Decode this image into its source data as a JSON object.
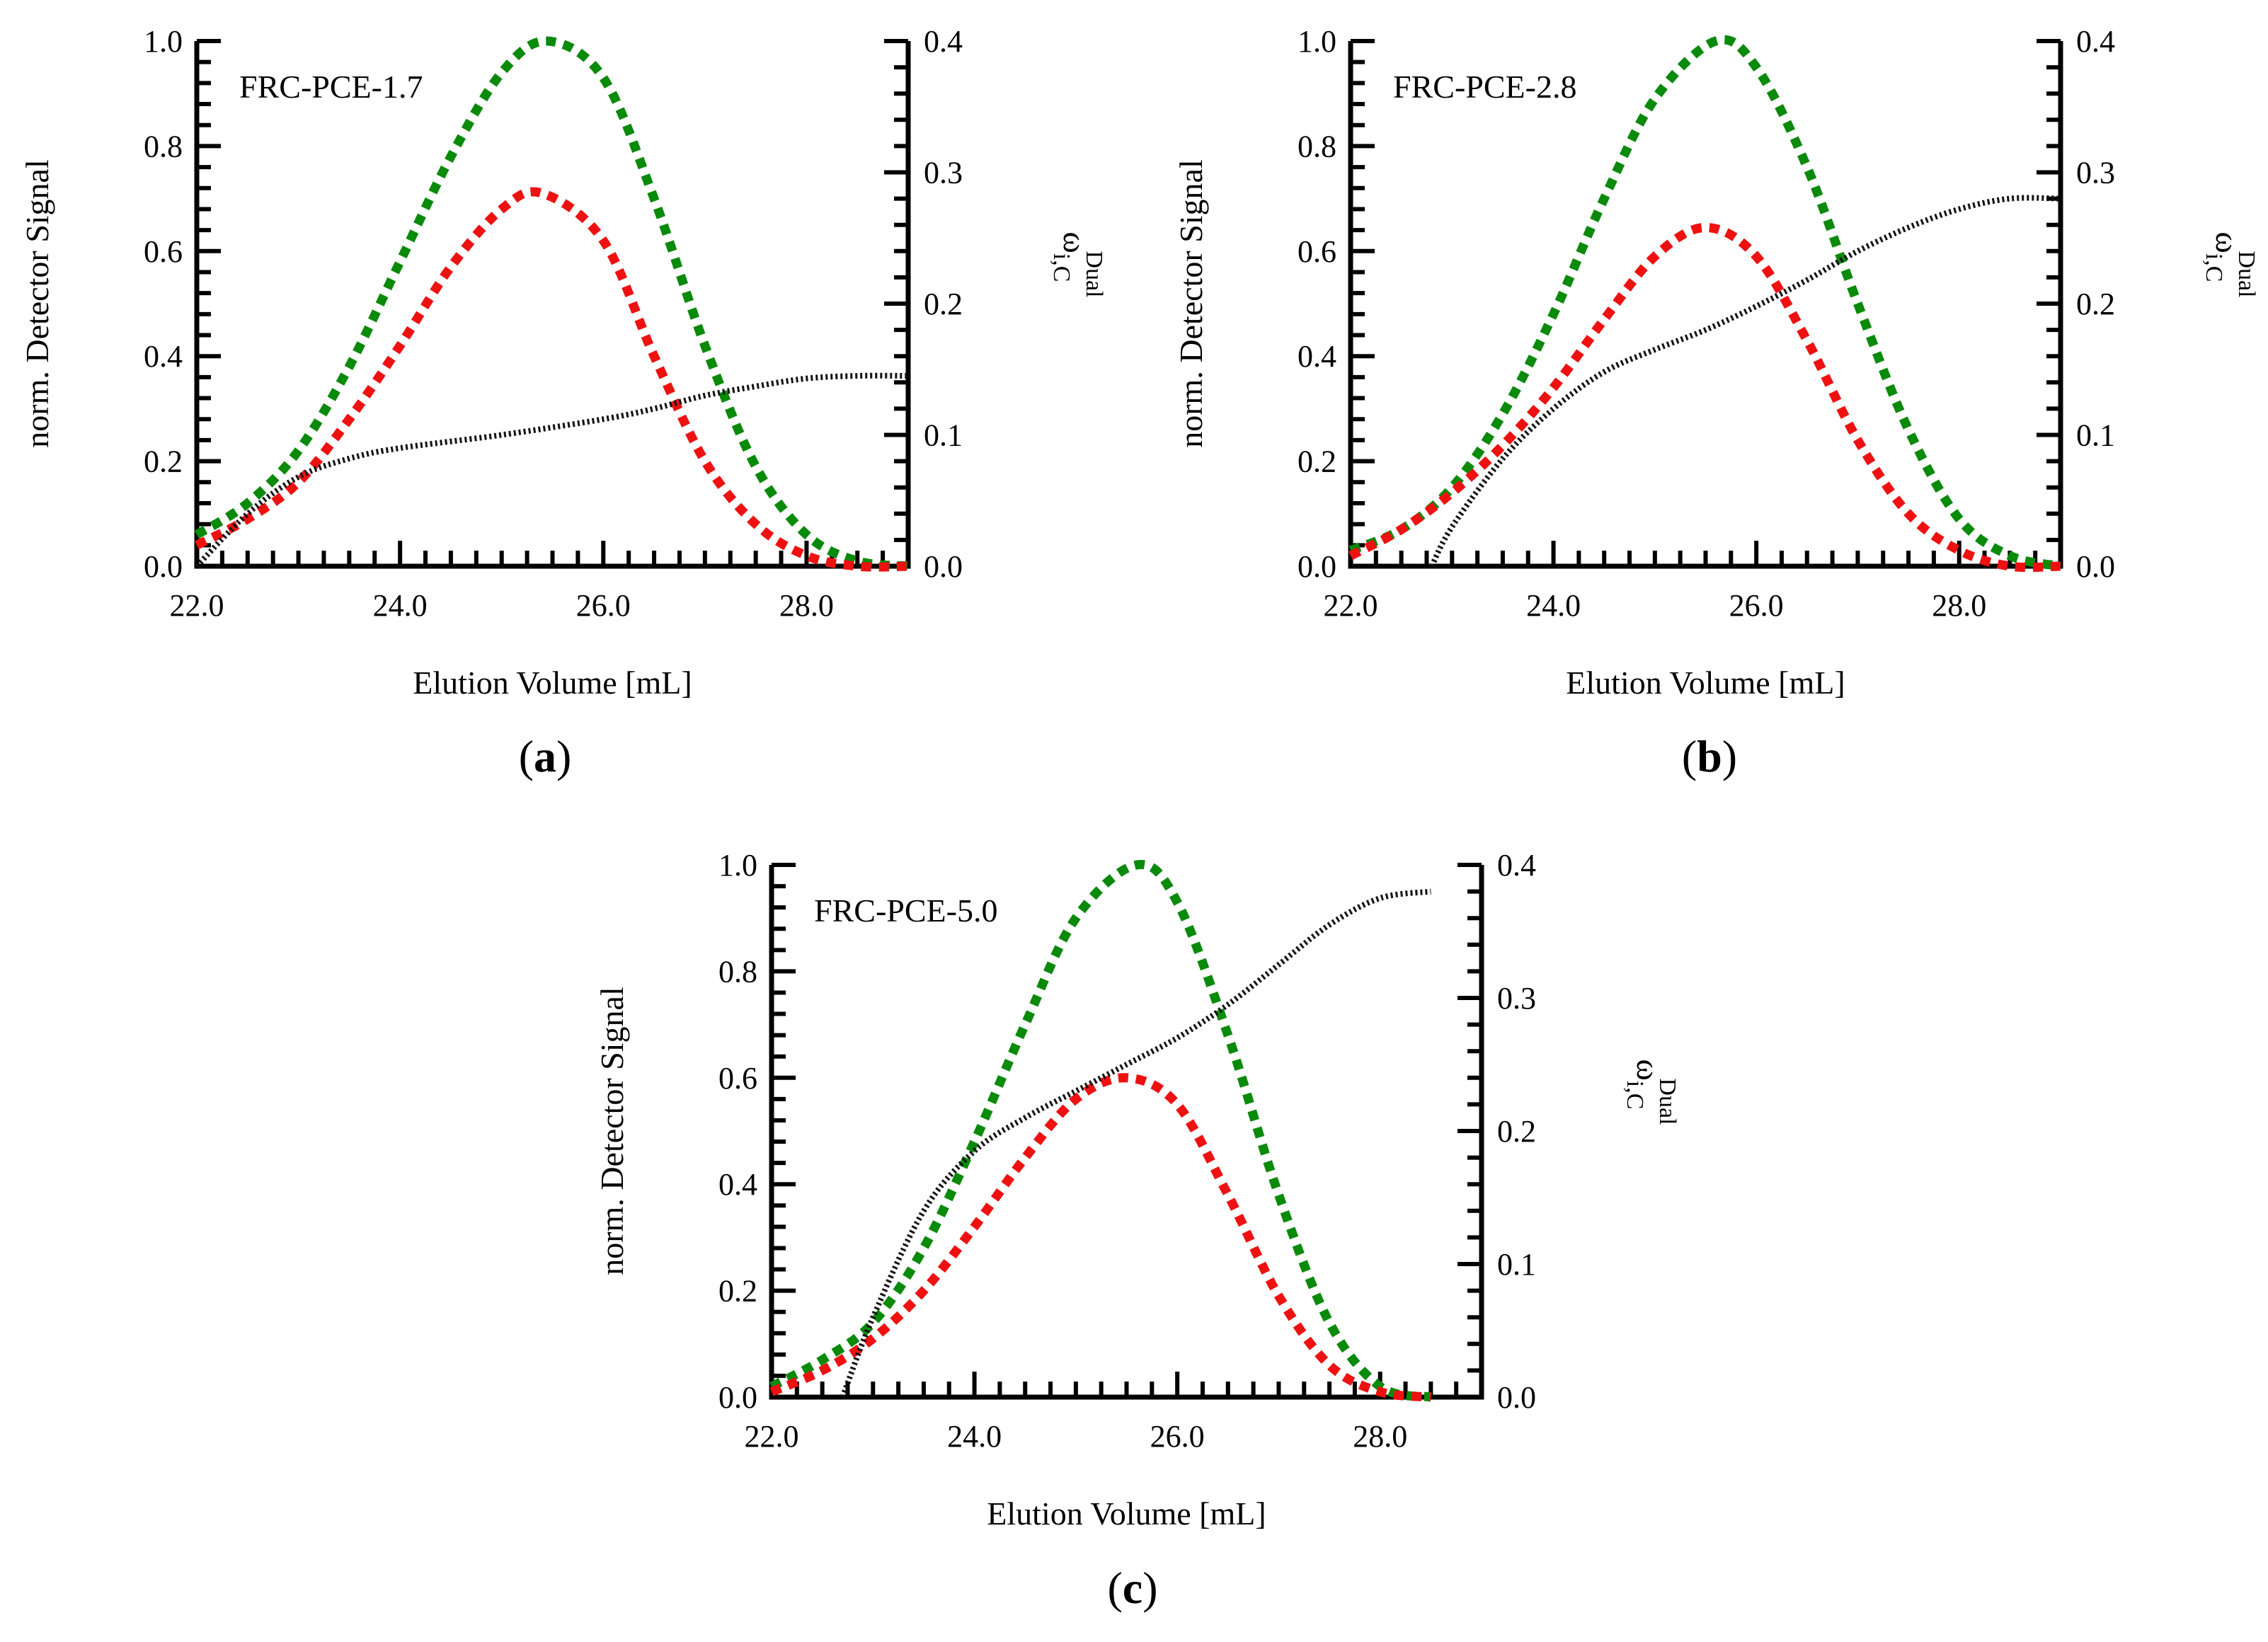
{
  "figure": {
    "colors": {
      "green": "#0a8a0a",
      "red": "#ee1111",
      "black": "#111111"
    }
  },
  "chart_data": [
    {
      "type": "line",
      "panel_label": "(a)",
      "panel_letter": "a",
      "title": "FRC-PCE-1.7",
      "xlabel": "Elution Volume [mL]",
      "ylabel": "norm. Detector Signal",
      "y2label": "ω",
      "y2label_sub": "i,C",
      "y2label_sup": "Dual",
      "xlim": [
        22.0,
        29.0
      ],
      "ylim": [
        0.0,
        1.0
      ],
      "y2lim": [
        0.0,
        0.4
      ],
      "xticks": [
        "22.0",
        "24.0",
        "26.0",
        "28.0"
      ],
      "yticks": [
        "0.0",
        "0.2",
        "0.4",
        "0.6",
        "0.8",
        "1.0"
      ],
      "y2ticks": [
        "0.0",
        "0.1",
        "0.2",
        "0.3",
        "0.4"
      ],
      "series": [
        {
          "name": "green",
          "axis": "left",
          "style": "dashed",
          "x": [
            22.0,
            22.5,
            23.0,
            23.5,
            24.0,
            24.5,
            25.0,
            25.45,
            26.0,
            26.5,
            27.0,
            27.5,
            28.0,
            28.5,
            29.0
          ],
          "y": [
            0.06,
            0.12,
            0.22,
            0.38,
            0.58,
            0.78,
            0.94,
            1.0,
            0.93,
            0.7,
            0.42,
            0.19,
            0.06,
            0.01,
            0.0
          ]
        },
        {
          "name": "red",
          "axis": "left",
          "style": "dashed",
          "x": [
            22.0,
            22.5,
            23.0,
            23.5,
            24.0,
            24.5,
            25.0,
            25.4,
            26.0,
            26.5,
            27.0,
            27.5,
            28.0,
            28.5,
            29.0
          ],
          "y": [
            0.04,
            0.09,
            0.16,
            0.28,
            0.42,
            0.57,
            0.68,
            0.71,
            0.62,
            0.4,
            0.2,
            0.08,
            0.02,
            0.0,
            0.0
          ]
        },
        {
          "name": "black",
          "axis": "right",
          "style": "dotted",
          "x": [
            22.0,
            22.5,
            23.0,
            23.5,
            24.0,
            25.0,
            26.0,
            26.5,
            27.0,
            27.5,
            28.0,
            28.5,
            29.0
          ],
          "y": [
            0.0,
            0.04,
            0.068,
            0.082,
            0.09,
            0.1,
            0.112,
            0.12,
            0.13,
            0.137,
            0.143,
            0.145,
            0.145
          ]
        }
      ]
    },
    {
      "type": "line",
      "panel_label": "(b)",
      "panel_letter": "b",
      "title": "FRC-PCE-2.8",
      "xlabel": "Elution Volume [mL]",
      "ylabel": "norm. Detector Signal",
      "y2label": "ω",
      "y2label_sub": "i,C",
      "y2label_sup": "Dual",
      "xlim": [
        22.0,
        29.0
      ],
      "ylim": [
        0.0,
        1.0
      ],
      "y2lim": [
        0.0,
        0.4
      ],
      "xticks": [
        "22.0",
        "24.0",
        "26.0",
        "28.0"
      ],
      "yticks": [
        "0.0",
        "0.2",
        "0.4",
        "0.6",
        "0.8",
        "1.0"
      ],
      "y2ticks": [
        "0.0",
        "0.1",
        "0.2",
        "0.3",
        "0.4"
      ],
      "series": [
        {
          "name": "green",
          "axis": "left",
          "style": "dashed",
          "x": [
            22.0,
            22.5,
            23.0,
            23.5,
            24.0,
            24.5,
            25.0,
            25.6,
            26.0,
            26.5,
            27.0,
            27.5,
            28.0,
            28.5,
            29.0
          ],
          "y": [
            0.03,
            0.07,
            0.15,
            0.29,
            0.48,
            0.7,
            0.89,
            1.0,
            0.95,
            0.76,
            0.5,
            0.26,
            0.09,
            0.02,
            0.0
          ]
        },
        {
          "name": "red",
          "axis": "left",
          "style": "dashed",
          "x": [
            22.0,
            22.5,
            23.0,
            23.5,
            24.0,
            24.5,
            25.0,
            25.5,
            26.0,
            26.5,
            27.0,
            27.5,
            28.0,
            28.5,
            29.0
          ],
          "y": [
            0.02,
            0.07,
            0.14,
            0.23,
            0.34,
            0.47,
            0.59,
            0.645,
            0.59,
            0.43,
            0.24,
            0.1,
            0.03,
            0.0,
            0.0
          ]
        },
        {
          "name": "black",
          "axis": "right",
          "style": "dotted",
          "x": [
            22.8,
            23.0,
            23.5,
            24.0,
            24.5,
            25.0,
            25.5,
            26.0,
            26.5,
            27.0,
            27.5,
            28.0,
            28.5,
            29.0
          ],
          "y": [
            0.0,
            0.03,
            0.082,
            0.12,
            0.148,
            0.165,
            0.18,
            0.198,
            0.218,
            0.24,
            0.258,
            0.272,
            0.28,
            0.28
          ]
        }
      ]
    },
    {
      "type": "line",
      "panel_label": "(c)",
      "panel_letter": "c",
      "title": "FRC-PCE-5.0",
      "xlabel": "Elution Volume [mL]",
      "ylabel": "norm. Detector Signal",
      "y2label": "ω",
      "y2label_sub": "i,C",
      "y2label_sup": "Dual",
      "xlim": [
        22.0,
        29.0
      ],
      "ylim": [
        0.0,
        1.0
      ],
      "y2lim": [
        0.0,
        0.4
      ],
      "xticks": [
        "22.0",
        "24.0",
        "26.0",
        "28.0"
      ],
      "yticks": [
        "0.0",
        "0.2",
        "0.4",
        "0.6",
        "0.8",
        "1.0"
      ],
      "y2ticks": [
        "0.0",
        "0.1",
        "0.2",
        "0.3",
        "0.4"
      ],
      "series": [
        {
          "name": "green",
          "axis": "left",
          "style": "dashed",
          "x": [
            22.0,
            22.5,
            23.0,
            23.5,
            24.0,
            24.5,
            25.0,
            25.6,
            26.0,
            26.5,
            27.0,
            27.5,
            28.0,
            28.5
          ],
          "y": [
            0.02,
            0.07,
            0.14,
            0.28,
            0.48,
            0.7,
            0.9,
            1.0,
            0.93,
            0.68,
            0.38,
            0.14,
            0.02,
            0.0
          ]
        },
        {
          "name": "red",
          "axis": "left",
          "style": "dashed",
          "x": [
            22.0,
            22.5,
            23.0,
            23.5,
            24.0,
            24.5,
            25.0,
            25.5,
            26.0,
            26.5,
            27.0,
            27.5,
            28.0,
            28.5
          ],
          "y": [
            0.01,
            0.05,
            0.11,
            0.2,
            0.32,
            0.45,
            0.56,
            0.6,
            0.55,
            0.38,
            0.19,
            0.06,
            0.01,
            0.0
          ]
        },
        {
          "name": "black",
          "axis": "right",
          "style": "dotted",
          "x": [
            22.7,
            23.0,
            23.5,
            24.0,
            24.5,
            25.0,
            25.5,
            26.0,
            26.5,
            27.0,
            27.5,
            28.0,
            28.5
          ],
          "y": [
            0.0,
            0.06,
            0.14,
            0.185,
            0.21,
            0.23,
            0.25,
            0.27,
            0.295,
            0.325,
            0.355,
            0.375,
            0.38
          ]
        }
      ]
    }
  ]
}
